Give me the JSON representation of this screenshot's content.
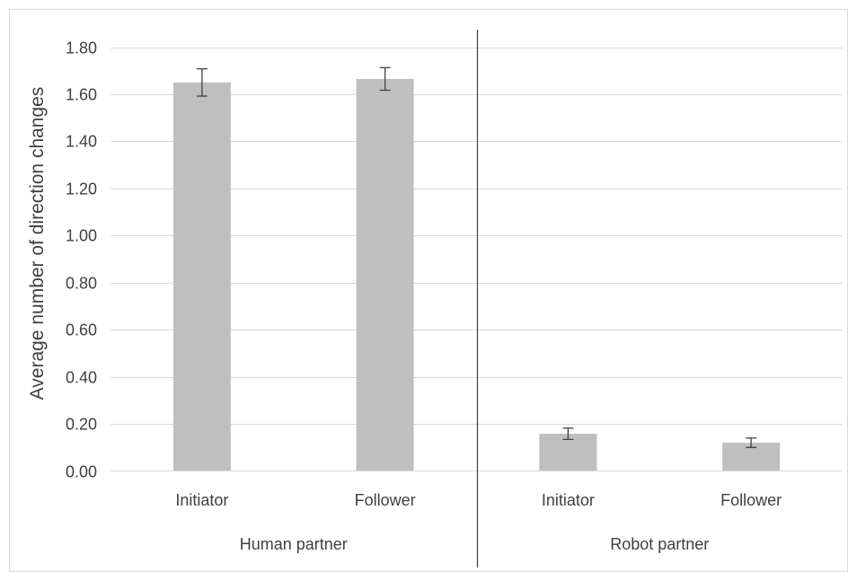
{
  "chart_data": {
    "type": "bar",
    "title": "",
    "xlabel": "",
    "ylabel": "Average number of direction changes",
    "ylim": [
      0,
      1.8
    ],
    "yticks": [
      "0.00",
      "0.20",
      "0.40",
      "0.60",
      "0.80",
      "1.00",
      "1.20",
      "1.40",
      "1.60",
      "1.80"
    ],
    "grid": true,
    "legend": "none",
    "bar_color": "#bfbfbf",
    "groups": [
      "Human partner",
      "Robot partner"
    ],
    "categories": [
      {
        "label": "Initiator",
        "group": "Human partner",
        "value": 1.65,
        "err": 0.058
      },
      {
        "label": "Follower",
        "group": "Human partner",
        "value": 1.665,
        "err": 0.048
      },
      {
        "label": "Initiator",
        "group": "Robot partner",
        "value": 0.158,
        "err": 0.024
      },
      {
        "label": "Follower",
        "group": "Robot partner",
        "value": 0.12,
        "err": 0.02
      }
    ]
  }
}
